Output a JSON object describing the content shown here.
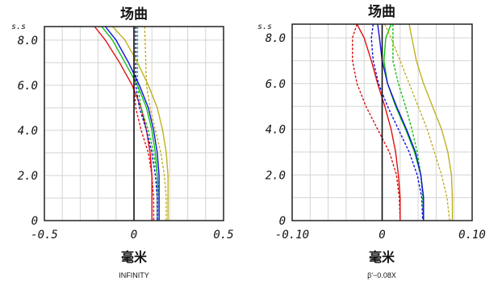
{
  "chart_data": [
    {
      "type": "line",
      "title": "场曲",
      "xlabel": "毫米",
      "ylabel": "s.s",
      "note": "INFINITY",
      "xlim": [
        -0.5,
        0.5
      ],
      "ylim": [
        0,
        8.6
      ],
      "x_ticks": [
        -0.5,
        0,
        0.5
      ],
      "x_tick_labels": [
        "-0.5",
        "0",
        "0.5"
      ],
      "y_ticks": [
        0,
        2,
        4,
        6,
        8
      ],
      "y_tick_labels": [
        "0",
        "2.0",
        "4.0",
        "6.0",
        "8.0"
      ],
      "grid": true,
      "series": [
        {
          "color": "#e01010",
          "dash": false,
          "points": [
            [
              -0.22,
              8.6
            ],
            [
              -0.16,
              8.0
            ],
            [
              -0.08,
              7.0
            ],
            [
              -0.01,
              6.0
            ],
            [
              0.04,
              5.0
            ],
            [
              0.07,
              4.0
            ],
            [
              0.09,
              3.0
            ],
            [
              0.1,
              2.0
            ],
            [
              0.1,
              1.0
            ],
            [
              0.1,
              0
            ]
          ]
        },
        {
          "color": "#e01010",
          "dash": true,
          "points": [
            [
              0.0,
              8.6
            ],
            [
              0.0,
              6.0
            ],
            [
              0.01,
              5.0
            ],
            [
              0.04,
              4.0
            ],
            [
              0.08,
              3.0
            ],
            [
              0.1,
              2.0
            ],
            [
              0.11,
              1.0
            ],
            [
              0.11,
              0
            ]
          ]
        },
        {
          "color": "#10c010",
          "dash": false,
          "points": [
            [
              -0.18,
              8.6
            ],
            [
              -0.12,
              8.0
            ],
            [
              -0.05,
              7.0
            ],
            [
              0.02,
              6.0
            ],
            [
              0.07,
              5.0
            ],
            [
              0.1,
              4.0
            ],
            [
              0.12,
              3.0
            ],
            [
              0.13,
              2.0
            ],
            [
              0.13,
              1.0
            ],
            [
              0.13,
              0
            ]
          ]
        },
        {
          "color": "#10c010",
          "dash": true,
          "points": [
            [
              0.02,
              8.6
            ],
            [
              0.02,
              6.0
            ],
            [
              0.04,
              5.0
            ],
            [
              0.08,
              4.0
            ],
            [
              0.11,
              3.0
            ],
            [
              0.13,
              2.0
            ],
            [
              0.14,
              1.0
            ],
            [
              0.14,
              0
            ]
          ]
        },
        {
          "color": "#1010e0",
          "dash": false,
          "points": [
            [
              -0.16,
              8.6
            ],
            [
              -0.1,
              8.0
            ],
            [
              -0.03,
              7.0
            ],
            [
              0.03,
              6.0
            ],
            [
              0.08,
              5.0
            ],
            [
              0.11,
              4.0
            ],
            [
              0.13,
              3.0
            ],
            [
              0.14,
              2.0
            ],
            [
              0.14,
              1.0
            ],
            [
              0.14,
              0
            ]
          ]
        },
        {
          "color": "#1010e0",
          "dash": true,
          "points": [
            [
              0.01,
              8.6
            ],
            [
              0.01,
              6.0
            ],
            [
              0.03,
              5.0
            ],
            [
              0.07,
              4.0
            ],
            [
              0.1,
              3.0
            ],
            [
              0.12,
              2.0
            ],
            [
              0.13,
              1.0
            ],
            [
              0.13,
              0
            ]
          ]
        },
        {
          "color": "#c0b020",
          "dash": false,
          "points": [
            [
              -0.12,
              8.6
            ],
            [
              -0.05,
              8.0
            ],
            [
              0.02,
              7.0
            ],
            [
              0.08,
              6.0
            ],
            [
              0.13,
              5.0
            ],
            [
              0.16,
              4.0
            ],
            [
              0.18,
              3.0
            ],
            [
              0.19,
              2.0
            ],
            [
              0.19,
              1.0
            ],
            [
              0.19,
              0
            ]
          ]
        },
        {
          "color": "#c0b020",
          "dash": true,
          "points": [
            [
              0.06,
              8.6
            ],
            [
              0.07,
              6.0
            ],
            [
              0.09,
              5.0
            ],
            [
              0.12,
              4.0
            ],
            [
              0.15,
              3.0
            ],
            [
              0.17,
              2.0
            ],
            [
              0.18,
              1.0
            ],
            [
              0.18,
              0
            ]
          ]
        }
      ]
    },
    {
      "type": "line",
      "title": "场曲",
      "xlabel": "毫米",
      "ylabel": "s.s",
      "note": "β'−0.08X",
      "xlim": [
        -0.1,
        0.1
      ],
      "ylim": [
        0,
        8.6
      ],
      "x_ticks": [
        -0.1,
        0,
        0.1
      ],
      "x_tick_labels": [
        "-0.10",
        "0",
        "0.10"
      ],
      "y_ticks": [
        0,
        2,
        4,
        6,
        8
      ],
      "y_tick_labels": [
        "0",
        "2.0",
        "4.0",
        "6.0",
        "8.0"
      ],
      "grid": true,
      "series": [
        {
          "color": "#e01010",
          "dash": false,
          "points": [
            [
              -0.028,
              8.6
            ],
            [
              -0.02,
              8.0
            ],
            [
              -0.012,
              7.0
            ],
            [
              -0.005,
              6.0
            ],
            [
              0.003,
              5.0
            ],
            [
              0.01,
              4.0
            ],
            [
              0.015,
              3.0
            ],
            [
              0.018,
              2.0
            ],
            [
              0.02,
              1.0
            ],
            [
              0.02,
              0
            ]
          ]
        },
        {
          "color": "#e01010",
          "dash": true,
          "points": [
            [
              -0.028,
              8.6
            ],
            [
              -0.033,
              8.0
            ],
            [
              -0.033,
              7.0
            ],
            [
              -0.028,
              6.0
            ],
            [
              -0.018,
              5.0
            ],
            [
              -0.005,
              4.0
            ],
            [
              0.008,
              3.0
            ],
            [
              0.016,
              2.0
            ],
            [
              0.019,
              1.0
            ],
            [
              0.02,
              0
            ]
          ]
        },
        {
          "color": "#10c010",
          "dash": false,
          "points": [
            [
              0.01,
              8.6
            ],
            [
              0.004,
              8.0
            ],
            [
              0.002,
              7.0
            ],
            [
              0.006,
              6.0
            ],
            [
              0.015,
              5.0
            ],
            [
              0.026,
              4.0
            ],
            [
              0.036,
              3.0
            ],
            [
              0.043,
              2.0
            ],
            [
              0.046,
              1.0
            ],
            [
              0.046,
              0
            ]
          ]
        },
        {
          "color": "#10c010",
          "dash": true,
          "points": [
            [
              0.012,
              8.6
            ],
            [
              0.012,
              7.0
            ],
            [
              0.018,
              6.0
            ],
            [
              0.026,
              5.0
            ],
            [
              0.033,
              4.0
            ],
            [
              0.039,
              3.0
            ],
            [
              0.043,
              2.0
            ],
            [
              0.045,
              1.0
            ],
            [
              0.046,
              0
            ]
          ]
        },
        {
          "color": "#1010e0",
          "dash": false,
          "points": [
            [
              -0.005,
              8.6
            ],
            [
              -0.003,
              8.0
            ],
            [
              0.0,
              7.0
            ],
            [
              0.006,
              6.0
            ],
            [
              0.016,
              5.0
            ],
            [
              0.027,
              4.0
            ],
            [
              0.037,
              3.0
            ],
            [
              0.043,
              2.0
            ],
            [
              0.046,
              1.0
            ],
            [
              0.046,
              0
            ]
          ]
        },
        {
          "color": "#1010e0",
          "dash": true,
          "points": [
            [
              -0.01,
              8.6
            ],
            [
              -0.012,
              8.0
            ],
            [
              -0.01,
              7.0
            ],
            [
              -0.004,
              6.0
            ],
            [
              0.006,
              5.0
            ],
            [
              0.018,
              4.0
            ],
            [
              0.03,
              3.0
            ],
            [
              0.039,
              2.0
            ],
            [
              0.044,
              1.0
            ],
            [
              0.045,
              0
            ]
          ]
        },
        {
          "color": "#c0b020",
          "dash": false,
          "points": [
            [
              0.03,
              8.6
            ],
            [
              0.033,
              8.0
            ],
            [
              0.038,
              7.0
            ],
            [
              0.046,
              6.0
            ],
            [
              0.056,
              5.0
            ],
            [
              0.066,
              4.0
            ],
            [
              0.073,
              3.0
            ],
            [
              0.077,
              2.0
            ],
            [
              0.078,
              1.0
            ],
            [
              0.078,
              0
            ]
          ]
        },
        {
          "color": "#c0b020",
          "dash": true,
          "points": [
            [
              0.003,
              8.6
            ],
            [
              0.01,
              8.0
            ],
            [
              0.02,
              7.0
            ],
            [
              0.03,
              6.0
            ],
            [
              0.04,
              5.0
            ],
            [
              0.05,
              4.0
            ],
            [
              0.058,
              3.0
            ],
            [
              0.066,
              2.0
            ],
            [
              0.072,
              1.0
            ],
            [
              0.075,
              0
            ]
          ]
        }
      ]
    }
  ]
}
